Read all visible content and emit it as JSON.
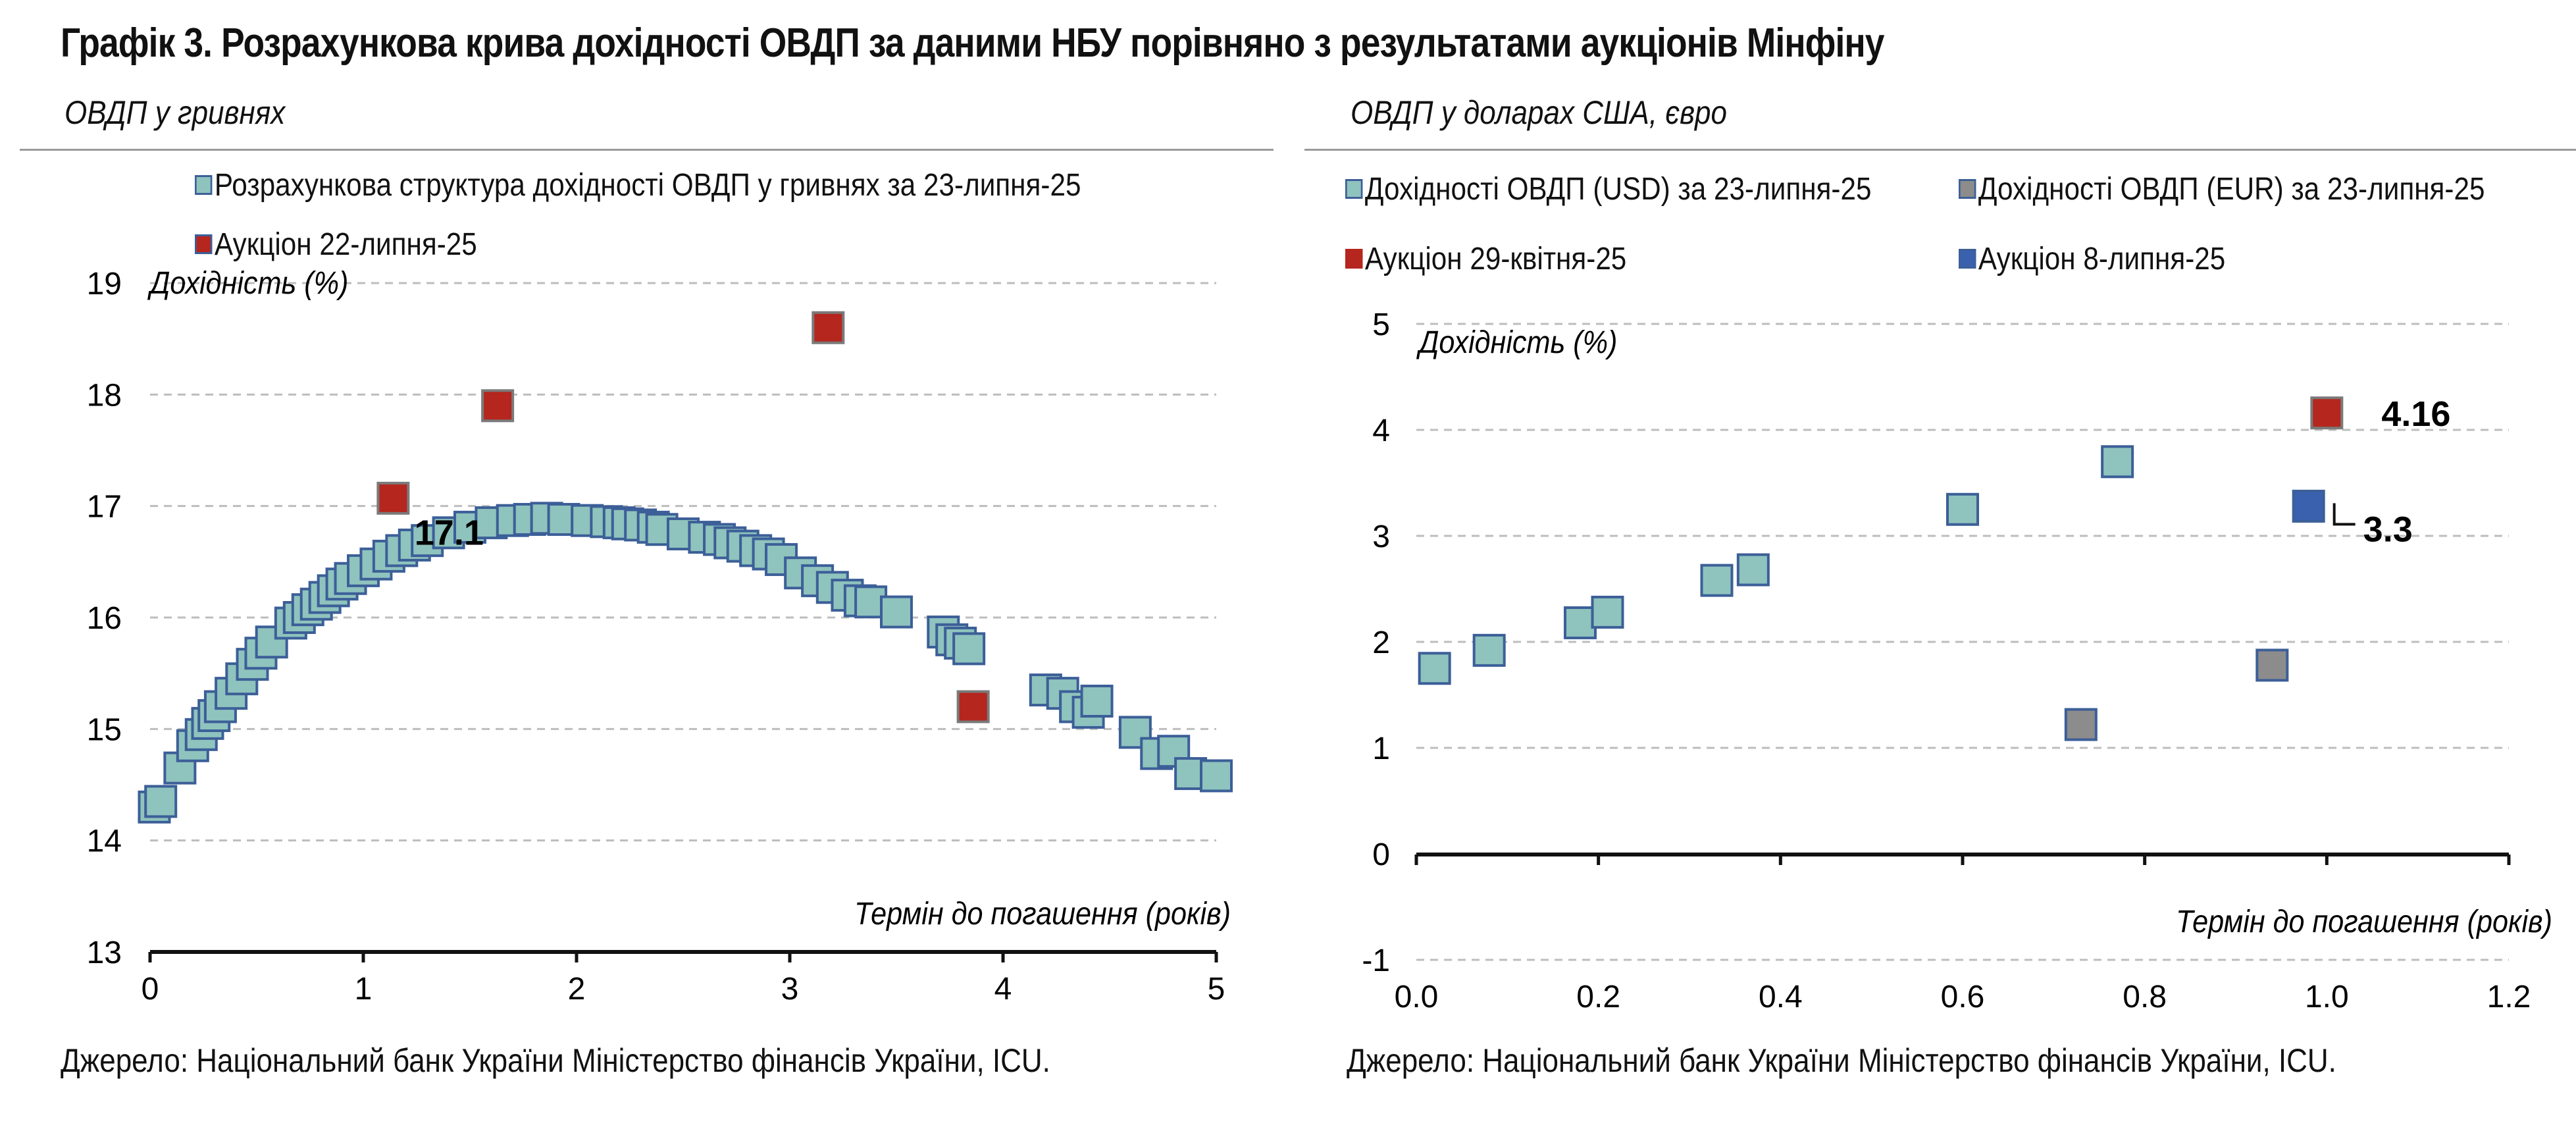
{
  "title": "Графік 3. Розрахункова крива дохідності ОВДП за даними НБУ порівняно з результатами аукціонів Мінфіну",
  "left_panel": {
    "subtitle": "ОВДП у гривнях",
    "legend": [
      {
        "label": "Розрахункова структура дохідності ОВДП у гривнях за 23-липня-25",
        "color": "#8fc3bd"
      },
      {
        "label": "Аукціон 22-липня-25",
        "color": "#b5261e"
      }
    ],
    "source": "Джерело: Національний банк України Міністерство фінансів України, ICU."
  },
  "right_panel": {
    "subtitle": "ОВДП у доларах США, євро",
    "legend": [
      {
        "label": "Дохідності ОВДП (USD) за 23-липня-25",
        "color": "#8fc3bd"
      },
      {
        "label": "Дохідності ОВДП (EUR) за 23-липня-25",
        "color": "#8c8c8c"
      },
      {
        "label": "Аукціон 29-квітня-25",
        "color": "#b5261e"
      },
      {
        "label": "Аукціон 8-липня-25",
        "color": "#3a61ad"
      }
    ],
    "source": "Джерело: Національний банк України Міністерство фінансів України, ICU."
  },
  "chart_data": [
    {
      "type": "scatter",
      "ylabel": "Дохідність (%)",
      "xlabel": "Термін до погашення (років)",
      "xlim": [
        0,
        5
      ],
      "ylim": [
        13,
        19
      ],
      "xticks": [
        "0",
        "1",
        "2",
        "3",
        "4",
        "5"
      ],
      "yticks": [
        "13",
        "14",
        "15",
        "16",
        "17",
        "18",
        "19"
      ],
      "grid": true,
      "series": [
        {
          "name": "Розрахункова структура дохідності ОВДП у гривнях за 23-липня-25",
          "color": "#8fc3bd",
          "points": [
            [
              0.02,
              14.3
            ],
            [
              0.05,
              14.35
            ],
            [
              0.14,
              14.65
            ],
            [
              0.2,
              14.85
            ],
            [
              0.24,
              14.95
            ],
            [
              0.27,
              15.05
            ],
            [
              0.3,
              15.12
            ],
            [
              0.33,
              15.2
            ],
            [
              0.38,
              15.32
            ],
            [
              0.43,
              15.45
            ],
            [
              0.48,
              15.58
            ],
            [
              0.52,
              15.68
            ],
            [
              0.57,
              15.78
            ],
            [
              0.66,
              15.95
            ],
            [
              0.7,
              16.0
            ],
            [
              0.74,
              16.07
            ],
            [
              0.78,
              16.12
            ],
            [
              0.82,
              16.18
            ],
            [
              0.86,
              16.24
            ],
            [
              0.9,
              16.3
            ],
            [
              0.94,
              16.35
            ],
            [
              1.0,
              16.42
            ],
            [
              1.06,
              16.48
            ],
            [
              1.12,
              16.55
            ],
            [
              1.18,
              16.6
            ],
            [
              1.24,
              16.65
            ],
            [
              1.3,
              16.69
            ],
            [
              1.4,
              16.76
            ],
            [
              1.5,
              16.81
            ],
            [
              1.6,
              16.85
            ],
            [
              1.7,
              16.87
            ],
            [
              1.78,
              16.88
            ],
            [
              1.86,
              16.89
            ],
            [
              1.94,
              16.88
            ],
            [
              2.05,
              16.87
            ],
            [
              2.14,
              16.86
            ],
            [
              2.2,
              16.85
            ],
            [
              2.24,
              16.84
            ],
            [
              2.3,
              16.83
            ],
            [
              2.36,
              16.81
            ],
            [
              2.4,
              16.79
            ],
            [
              2.5,
              16.75
            ],
            [
              2.6,
              16.72
            ],
            [
              2.67,
              16.7
            ],
            [
              2.72,
              16.67
            ],
            [
              2.78,
              16.64
            ],
            [
              2.84,
              16.6
            ],
            [
              2.9,
              16.57
            ],
            [
              2.96,
              16.52
            ],
            [
              3.05,
              16.4
            ],
            [
              3.13,
              16.33
            ],
            [
              3.2,
              16.27
            ],
            [
              3.27,
              16.2
            ],
            [
              3.33,
              16.15
            ],
            [
              3.38,
              16.14
            ],
            [
              3.5,
              16.05
            ],
            [
              3.72,
              15.87
            ],
            [
              3.76,
              15.8
            ],
            [
              3.8,
              15.77
            ],
            [
              3.84,
              15.72
            ],
            [
              4.2,
              15.35
            ],
            [
              4.28,
              15.32
            ],
            [
              4.34,
              15.2
            ],
            [
              4.4,
              15.15
            ],
            [
              4.44,
              15.25
            ],
            [
              4.62,
              14.97
            ],
            [
              4.72,
              14.78
            ],
            [
              4.8,
              14.8
            ],
            [
              4.88,
              14.6
            ],
            [
              5.0,
              14.58
            ]
          ]
        },
        {
          "name": "Аукціон 22-липня-25",
          "color": "#b5261e",
          "points": [
            [
              1.14,
              17.07
            ],
            [
              1.63,
              17.9
            ],
            [
              3.18,
              18.6
            ],
            [
              3.86,
              15.2
            ]
          ]
        }
      ],
      "annotations": [
        {
          "text": "17.1",
          "x": 1.24,
          "y": 16.76
        }
      ]
    },
    {
      "type": "scatter",
      "ylabel": "Дохідність (%)",
      "xlabel": "Термін до погашення (років)",
      "xlim": [
        0,
        1.2
      ],
      "ylim": [
        -1,
        5
      ],
      "xticks": [
        "0.0",
        "0.2",
        "0.4",
        "0.6",
        "0.8",
        "1.0",
        "1.2"
      ],
      "yticks": [
        "-1",
        "0",
        "1",
        "2",
        "3",
        "4",
        "5"
      ],
      "grid": true,
      "series": [
        {
          "name": "Дохідності ОВДП (USD) за 23-липня-25",
          "color": "#8fc3bd",
          "points": [
            [
              0.02,
              1.75
            ],
            [
              0.08,
              1.92
            ],
            [
              0.18,
              2.18
            ],
            [
              0.21,
              2.28
            ],
            [
              0.33,
              2.58
            ],
            [
              0.37,
              2.68
            ],
            [
              0.6,
              3.25
            ],
            [
              0.77,
              3.7
            ]
          ]
        },
        {
          "name": "Дохідності ОВДП (EUR) за 23-липня-25",
          "color": "#8c8c8c",
          "points": [
            [
              0.73,
              1.22
            ],
            [
              0.94,
              1.78
            ]
          ]
        },
        {
          "name": "Аукціон 29-квітня-25",
          "color": "#b5261e",
          "points": [
            [
              1.0,
              4.16
            ]
          ]
        },
        {
          "name": "Аукціон 8-липня-25",
          "color": "#3a61ad",
          "points": [
            [
              0.98,
              3.28
            ]
          ]
        }
      ],
      "annotations": [
        {
          "text": "4.16",
          "x": 1.06,
          "y": 4.15
        },
        {
          "text": "3.3",
          "x": 1.04,
          "y": 3.06
        }
      ]
    }
  ]
}
